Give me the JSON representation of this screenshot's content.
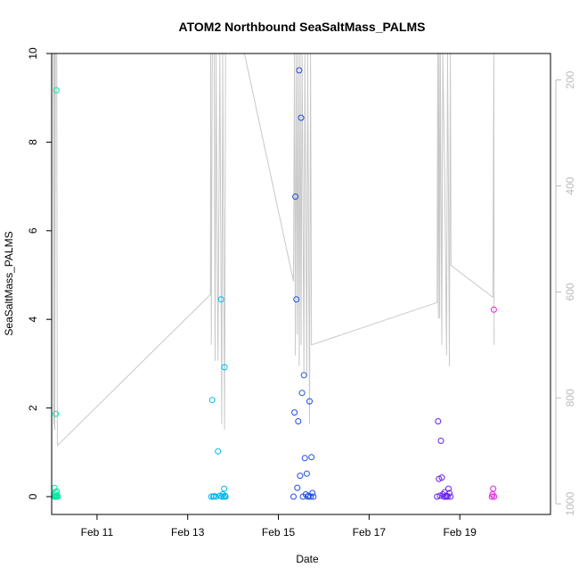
{
  "chart_data": {
    "type": "scatter",
    "title": "ATOM2 Northbound SeaSaltMass_PALMS",
    "xlabel": "Date",
    "ylabel": "SeaSaltMass_PALMS",
    "xlim": [
      "2017-02-10 00:00",
      "2017-02-21 00:00"
    ],
    "ylim": [
      0,
      10
    ],
    "x_ticks": [
      {
        "date": "2017-02-11",
        "label": "Feb 11"
      },
      {
        "date": "2017-02-13",
        "label": "Feb 13"
      },
      {
        "date": "2017-02-15",
        "label": "Feb 15"
      },
      {
        "date": "2017-02-17",
        "label": "Feb 17"
      },
      {
        "date": "2017-02-19",
        "label": "Feb 19"
      }
    ],
    "y_ticks": [
      0,
      2,
      4,
      6,
      8,
      10
    ],
    "y2_axis": {
      "reversed": true,
      "range": [
        1020,
        150
      ],
      "ticks": [
        200,
        400,
        600,
        800,
        1000
      ],
      "color": "#bbbbbb"
    },
    "grid": false,
    "legend": "none",
    "line_color": "#c8c8c8",
    "series": [
      {
        "color": "#00e8a0",
        "points": [
          [
            "2017-02-10 01:20",
            0.0
          ],
          [
            "2017-02-10 01:30",
            0.2
          ],
          [
            "2017-02-10 01:40",
            0.05
          ],
          [
            "2017-02-10 01:50",
            0.0
          ],
          [
            "2017-02-10 02:00",
            0.1
          ],
          [
            "2017-02-10 02:10",
            1.87
          ],
          [
            "2017-02-10 02:20",
            0.0
          ],
          [
            "2017-02-10 02:30",
            9.17
          ],
          [
            "2017-02-10 02:40",
            0.12
          ],
          [
            "2017-02-10 02:50",
            0.0
          ],
          [
            "2017-02-10 03:00",
            0.02
          ],
          [
            "2017-02-10 03:10",
            0.0
          ]
        ]
      },
      {
        "color": "#00b8ee",
        "points": [
          [
            "2017-02-13 12:30",
            0.0
          ],
          [
            "2017-02-13 13:00",
            2.18
          ],
          [
            "2017-02-13 13:30",
            0.0
          ],
          [
            "2017-02-13 14:00",
            0.01
          ],
          [
            "2017-02-13 15:00",
            0.0
          ],
          [
            "2017-02-13 16:00",
            1.02
          ],
          [
            "2017-02-13 17:00",
            0.02
          ],
          [
            "2017-02-13 17:40",
            4.45
          ],
          [
            "2017-02-13 18:00",
            0.0
          ],
          [
            "2017-02-13 18:30",
            0.05
          ],
          [
            "2017-02-13 19:00",
            0.0
          ],
          [
            "2017-02-13 19:20",
            0.18
          ],
          [
            "2017-02-13 19:30",
            2.92
          ],
          [
            "2017-02-13 19:45",
            0.02
          ],
          [
            "2017-02-13 20:00",
            0.0
          ]
        ]
      },
      {
        "color": "#1f4fe0",
        "points": [
          [
            "2017-02-15 08:00",
            0.0
          ],
          [
            "2017-02-15 08:30",
            1.9
          ],
          [
            "2017-02-15 09:00",
            6.77
          ],
          [
            "2017-02-15 09:30",
            4.45
          ],
          [
            "2017-02-15 10:00",
            0.2
          ],
          [
            "2017-02-15 10:30",
            1.7
          ],
          [
            "2017-02-15 11:00",
            9.62
          ],
          [
            "2017-02-15 11:30",
            0.47
          ],
          [
            "2017-02-15 12:00",
            8.55
          ],
          [
            "2017-02-15 12:30",
            2.34
          ],
          [
            "2017-02-15 13:00",
            0.0
          ],
          [
            "2017-02-15 13:30",
            2.74
          ],
          [
            "2017-02-15 14:00",
            0.87
          ],
          [
            "2017-02-15 14:30",
            0.05
          ],
          [
            "2017-02-15 15:00",
            0.52
          ],
          [
            "2017-02-15 15:30",
            0.0
          ],
          [
            "2017-02-15 16:00",
            0.02
          ],
          [
            "2017-02-15 16:30",
            2.15
          ],
          [
            "2017-02-15 17:00",
            0.0
          ],
          [
            "2017-02-15 17:30",
            0.89
          ],
          [
            "2017-02-15 18:00",
            0.08
          ],
          [
            "2017-02-15 18:30",
            0.0
          ]
        ]
      },
      {
        "color": "#6a20ee",
        "points": [
          [
            "2017-02-18 12:00",
            0.0
          ],
          [
            "2017-02-18 12:30",
            1.7
          ],
          [
            "2017-02-18 13:00",
            0.4
          ],
          [
            "2017-02-18 13:30",
            0.02
          ],
          [
            "2017-02-18 14:00",
            1.26
          ],
          [
            "2017-02-18 14:30",
            0.43
          ],
          [
            "2017-02-18 15:00",
            0.05
          ],
          [
            "2017-02-18 15:30",
            0.0
          ],
          [
            "2017-02-18 16:00",
            0.1
          ],
          [
            "2017-02-18 16:30",
            0.0
          ],
          [
            "2017-02-18 17:00",
            0.02
          ],
          [
            "2017-02-18 17:30",
            0.0
          ],
          [
            "2017-02-18 18:00",
            0.18
          ],
          [
            "2017-02-18 18:30",
            0.08
          ],
          [
            "2017-02-18 19:00",
            0.0
          ]
        ]
      },
      {
        "color": "#e020e0",
        "points": [
          [
            "2017-02-19 17:00",
            0.0
          ],
          [
            "2017-02-19 17:20",
            0.05
          ],
          [
            "2017-02-19 17:40",
            0.18
          ],
          [
            "2017-02-19 18:00",
            4.22
          ],
          [
            "2017-02-19 18:10",
            0.0
          ]
        ]
      }
    ],
    "line_y2": [
      [
        "2017-02-10 01:00",
        150
      ],
      [
        "2017-02-10 01:05",
        850
      ],
      [
        "2017-02-10 01:10",
        150
      ],
      [
        "2017-02-10 01:20",
        840
      ],
      [
        "2017-02-10 01:30",
        150
      ],
      [
        "2017-02-10 01:40",
        860
      ],
      [
        "2017-02-10 02:00",
        150
      ],
      [
        "2017-02-10 02:20",
        150
      ],
      [
        "2017-02-10 02:40",
        150
      ],
      [
        "2017-02-10 03:00",
        890
      ],
      [
        "2017-02-13 12:00",
        605
      ],
      [
        "2017-02-13 12:10",
        150
      ],
      [
        "2017-02-13 12:30",
        700
      ],
      [
        "2017-02-13 13:00",
        150
      ],
      [
        "2017-02-13 14:00",
        150
      ],
      [
        "2017-02-13 14:30",
        730
      ],
      [
        "2017-02-13 15:00",
        150
      ],
      [
        "2017-02-13 16:00",
        730
      ],
      [
        "2017-02-13 17:00",
        150
      ],
      [
        "2017-02-13 18:00",
        850
      ],
      [
        "2017-02-13 18:30",
        150
      ],
      [
        "2017-02-13 19:30",
        860
      ],
      [
        "2017-02-13 20:00",
        150
      ],
      [
        "2017-02-14 06:00",
        150
      ],
      [
        "2017-02-15 08:00",
        580
      ],
      [
        "2017-02-15 08:30",
        150
      ],
      [
        "2017-02-15 09:00",
        720
      ],
      [
        "2017-02-15 09:30",
        150
      ],
      [
        "2017-02-15 10:00",
        680
      ],
      [
        "2017-02-15 10:30",
        150
      ],
      [
        "2017-02-15 11:00",
        740
      ],
      [
        "2017-02-15 11:30",
        150
      ],
      [
        "2017-02-15 12:00",
        700
      ],
      [
        "2017-02-15 12:30",
        150
      ],
      [
        "2017-02-15 13:30",
        750
      ],
      [
        "2017-02-15 14:00",
        150
      ],
      [
        "2017-02-15 15:00",
        760
      ],
      [
        "2017-02-15 15:30",
        150
      ],
      [
        "2017-02-15 16:30",
        850
      ],
      [
        "2017-02-15 17:00",
        150
      ],
      [
        "2017-02-15 17:30",
        700
      ],
      [
        "2017-02-18 12:00",
        620
      ],
      [
        "2017-02-18 12:20",
        150
      ],
      [
        "2017-02-18 12:40",
        650
      ],
      [
        "2017-02-18 13:00",
        150
      ],
      [
        "2017-02-18 13:20",
        650
      ],
      [
        "2017-02-18 13:40",
        150
      ],
      [
        "2017-02-18 14:30",
        700
      ],
      [
        "2017-02-18 15:00",
        150
      ],
      [
        "2017-02-18 16:00",
        380
      ],
      [
        "2017-02-18 17:00",
        720
      ],
      [
        "2017-02-18 17:30",
        150
      ],
      [
        "2017-02-18 18:00",
        420
      ],
      [
        "2017-02-18 18:30",
        740
      ],
      [
        "2017-02-18 19:00",
        150
      ],
      [
        "2017-02-18 19:20",
        550
      ],
      [
        "2017-02-19 17:30",
        610
      ],
      [
        "2017-02-19 18:00",
        150
      ],
      [
        "2017-02-19 18:10",
        700
      ]
    ]
  }
}
